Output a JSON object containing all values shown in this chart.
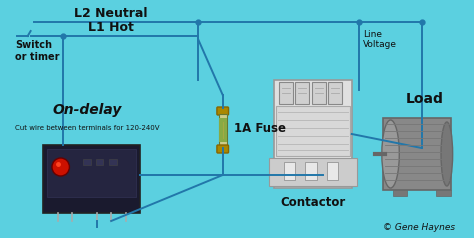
{
  "bg_color": "#5bd0e0",
  "label_l2": "L2 Neutral",
  "label_l1": "L1 Hot",
  "label_switch": "Switch\nor timer",
  "label_ondelay": "On-delay",
  "label_ondelay_sub": "Cut wire between terminals for 120-240V",
  "label_fuse": "1A Fuse",
  "label_contactor": "Contactor",
  "label_load": "Load",
  "label_line_voltage": "Line\nVoltage",
  "label_gene": "© Gene Haynes",
  "wire_color": "#2277aa",
  "figsize": [
    4.74,
    2.38
  ],
  "dpi": 100,
  "lw": 1.4,
  "wire_color_dark": "#1a5577"
}
